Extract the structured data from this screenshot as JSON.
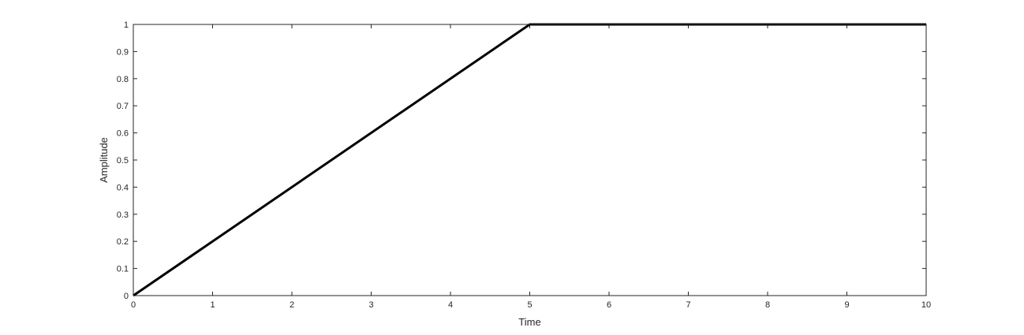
{
  "chart_data": {
    "type": "line",
    "title": "",
    "xlabel": "Time",
    "ylabel": "Amplitude",
    "xlim": [
      0,
      10
    ],
    "ylim": [
      0,
      1
    ],
    "xticks": [
      "0",
      "1",
      "2",
      "3",
      "4",
      "5",
      "6",
      "7",
      "8",
      "9",
      "10"
    ],
    "yticks": [
      "0",
      "0.1",
      "0.2",
      "0.3",
      "0.4",
      "0.5",
      "0.6",
      "0.7",
      "0.8",
      "0.9",
      "1"
    ],
    "grid": false,
    "legend": "none",
    "series": [
      {
        "x": [
          0,
          5,
          10
        ],
        "y": [
          0,
          1,
          1
        ],
        "color": "#000000"
      }
    ]
  }
}
